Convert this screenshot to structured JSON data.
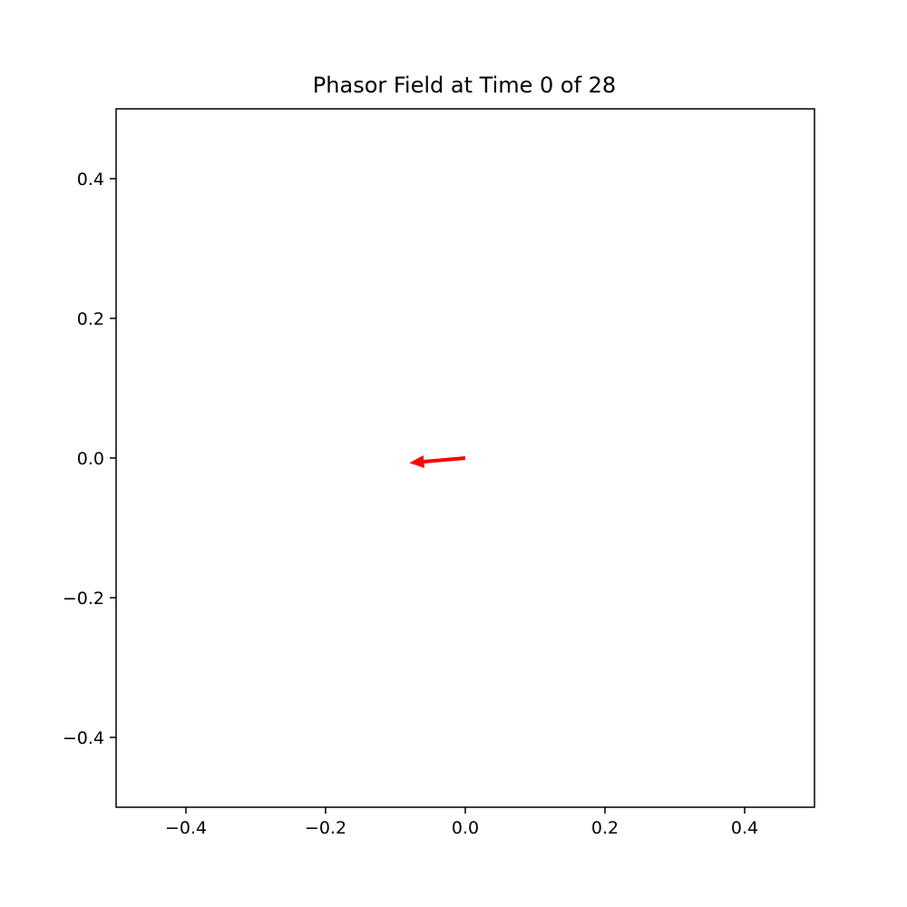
{
  "chart_data": {
    "type": "quiver",
    "title": "Phasor Field at Time 0 of 28",
    "xlabel": "",
    "ylabel": "",
    "xlim": [
      -0.5,
      0.5
    ],
    "ylim": [
      -0.5,
      0.5
    ],
    "grid": false,
    "x_ticks": [
      -0.4,
      -0.2,
      0.0,
      0.2,
      0.4
    ],
    "y_ticks": [
      -0.4,
      -0.2,
      0.0,
      0.2,
      0.4
    ],
    "x_tick_labels": [
      "−0.4",
      "−0.2",
      "0.0",
      "0.2",
      "0.4"
    ],
    "y_tick_labels": [
      "−0.4",
      "−0.2",
      "0.0",
      "0.2",
      "0.4"
    ],
    "arrows": [
      {
        "x": 0.0,
        "y": 0.0,
        "u": -0.08,
        "v": -0.007,
        "color": "#ff0000"
      }
    ]
  }
}
